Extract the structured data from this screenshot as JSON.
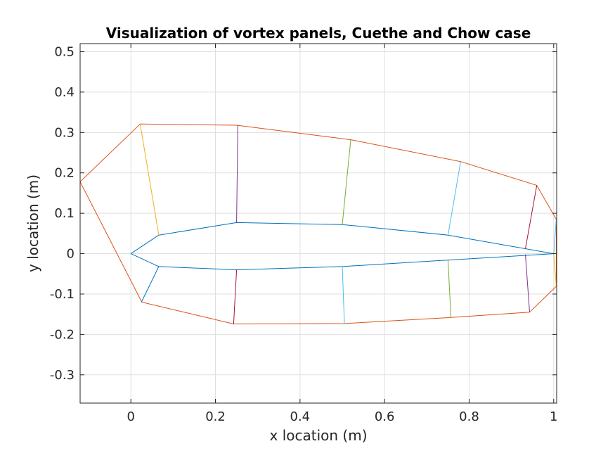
{
  "chart_data": {
    "type": "line",
    "title": "Visualization of vortex panels, Cuethe and Chow case",
    "xlabel": "x location (m)",
    "ylabel": "y location (m)",
    "xlim": [
      -0.12,
      1.007
    ],
    "ylim": [
      -0.37,
      0.52
    ],
    "grid": true,
    "x_ticks": [
      0,
      0.2,
      0.4,
      0.6,
      0.8,
      1
    ],
    "x_tick_labels": [
      "0",
      "0.2",
      "0.4",
      "0.6",
      "0.8",
      "1"
    ],
    "y_ticks": [
      0.5,
      0.4,
      0.3,
      0.2,
      0.1,
      0,
      -0.1,
      -0.2,
      -0.3
    ],
    "y_tick_labels": [
      "0.5",
      "0.4",
      "0.3",
      "0.2",
      "0.1",
      "0",
      "-0.1",
      "-0.2",
      "-0.3"
    ],
    "colors": {
      "blue": "#0072BD",
      "orange": "#D95319",
      "yellow": "#EDB120",
      "purple": "#7E2F8E",
      "green": "#77AC30",
      "cyan": "#4DBEEE",
      "red": "#A2142F"
    },
    "series": [
      {
        "color": "#0072BD",
        "x": [
          0,
          0.066,
          0.25,
          0.5,
          0.75,
          1,
          0.75,
          0.5,
          0.25,
          0.066,
          0
        ],
        "y": [
          0,
          -0.032,
          -0.04,
          -0.032,
          -0.016,
          0,
          0.046,
          0.072,
          0.077,
          0.046,
          0
        ]
      },
      {
        "color": "#D95319",
        "x": [
          -0.12,
          0.022,
          0.25,
          0.52,
          0.78,
          0.96,
          1.006,
          1.006,
          0.943,
          0.757,
          0.505,
          0.243,
          0.026,
          -0.12
        ],
        "y": [
          0.178,
          0.321,
          0.318,
          0.282,
          0.228,
          0.169,
          0.085,
          -0.081,
          -0.145,
          -0.158,
          -0.173,
          -0.174,
          -0.12,
          0.178
        ]
      },
      {
        "color": "#EDB120",
        "x": [
          0.022,
          0.066
        ],
        "y": [
          0.321,
          0.046
        ]
      },
      {
        "color": "#0072BD",
        "x": [
          0.025,
          0.066
        ],
        "y": [
          -0.12,
          -0.032
        ]
      },
      {
        "color": "#7E2F8E",
        "x": [
          0.253,
          0.25
        ],
        "y": [
          0.318,
          0.077
        ]
      },
      {
        "color": "#A2142F",
        "x": [
          0.25,
          0.243
        ],
        "y": [
          -0.04,
          -0.174
        ]
      },
      {
        "color": "#77AC30",
        "x": [
          0.52,
          0.5
        ],
        "y": [
          0.282,
          0.072
        ]
      },
      {
        "color": "#4DBEEE",
        "x": [
          0.5,
          0.505
        ],
        "y": [
          -0.032,
          -0.173
        ]
      },
      {
        "color": "#4DBEEE",
        "x": [
          0.78,
          0.75
        ],
        "y": [
          0.228,
          0.046
        ]
      },
      {
        "color": "#77AC30",
        "x": [
          0.75,
          0.757
        ],
        "y": [
          -0.016,
          -0.158
        ]
      },
      {
        "color": "#A2142F",
        "x": [
          0.96,
          0.933
        ],
        "y": [
          0.169,
          0.012
        ]
      },
      {
        "color": "#7E2F8E",
        "x": [
          0.933,
          0.943
        ],
        "y": [
          -0.002,
          -0.145
        ]
      },
      {
        "color": "#4DBEEE",
        "x": [
          1.006,
          1.0
        ],
        "y": [
          0.085,
          0.0
        ]
      },
      {
        "color": "#EDB120",
        "x": [
          1.0,
          1.006
        ],
        "y": [
          0.0,
          -0.081
        ]
      }
    ]
  }
}
